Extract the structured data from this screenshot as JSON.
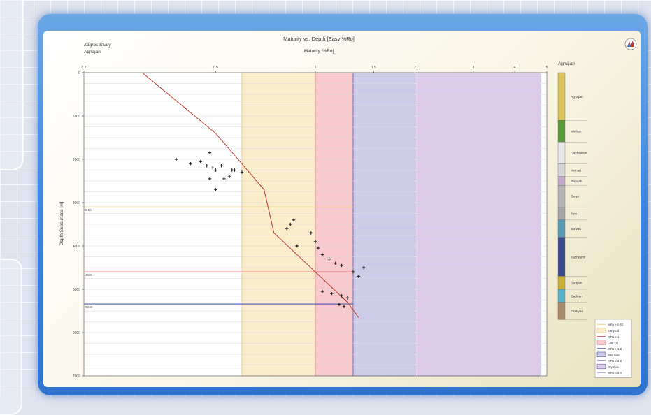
{
  "chart_data": {
    "type": "scatter",
    "title": "Maturity vs. Depth [Easy %Ro]",
    "header_left": [
      "Zagros Study",
      "Aghajari"
    ],
    "xlabel": "Maturity [%Ro]",
    "ylabel": "Depth Subsurface [m]",
    "x_scale": "log",
    "xlim": [
      0.2,
      5
    ],
    "ylim": [
      0,
      7000
    ],
    "x_ticks": [
      {
        "value": 0.2,
        "label": "0.2"
      },
      {
        "value": 0.5,
        "label": "0.5"
      },
      {
        "value": 1,
        "label": "1"
      },
      {
        "value": 1.5,
        "label": "1.5"
      },
      {
        "value": 2,
        "label": "2"
      },
      {
        "value": 3,
        "label": "3"
      },
      {
        "value": 4,
        "label": "4"
      },
      {
        "value": 5,
        "label": "5"
      }
    ],
    "y_ticks": [
      {
        "value": 0,
        "label": "0"
      },
      {
        "value": 1000,
        "label": "1000"
      },
      {
        "value": 2000,
        "label": "2000"
      },
      {
        "value": 3000,
        "label": "3000"
      },
      {
        "value": 4000,
        "label": "4000"
      },
      {
        "value": 5000,
        "label": "5000"
      },
      {
        "value": 6000,
        "label": "6000"
      },
      {
        "value": 7000,
        "label": "7000"
      }
    ],
    "maturity_zones": [
      {
        "name": "Early Oil",
        "from": 0.6,
        "to": 1.0,
        "color": "#fbeccb",
        "edge": "#e6cd7a"
      },
      {
        "name": "Late Oil",
        "from": 1.0,
        "to": 1.3,
        "color": "#f7c9cc",
        "edge": "#d88088"
      },
      {
        "name": "Wet Gas",
        "from": 1.3,
        "to": 2.0,
        "color": "#cccbe8",
        "edge": "#5a5aa8"
      },
      {
        "name": "Dry Gas",
        "from": 2.0,
        "to": 4.8,
        "color": "#dcccea",
        "edge": "#6a5aa8"
      }
    ],
    "depth_lines": [
      {
        "label": "0.55",
        "depth": 3100,
        "color": "#e8d58a"
      },
      {
        "label": "4600",
        "depth": 4600,
        "color": "#d46a72"
      },
      {
        "label": "5340",
        "depth": 5340,
        "color": "#4a5fb0"
      }
    ],
    "series": [
      {
        "name": "Easy %Ro",
        "kind": "line",
        "color": "#c0392b",
        "points": [
          [
            0.3,
            0
          ],
          [
            0.5,
            1400
          ],
          [
            0.7,
            2700
          ],
          [
            0.75,
            3700
          ],
          [
            1.0,
            4600
          ],
          [
            1.25,
            5300
          ],
          [
            1.35,
            5650
          ]
        ]
      },
      {
        "kind": "scatter",
        "color": "#222222",
        "points": [
          [
            0.38,
            2000
          ],
          [
            0.42,
            2100
          ],
          [
            0.45,
            2050
          ],
          [
            0.47,
            2150
          ],
          [
            0.48,
            1850
          ],
          [
            0.49,
            2200
          ],
          [
            0.5,
            2250
          ],
          [
            0.52,
            2150
          ],
          [
            0.53,
            2450
          ],
          [
            0.55,
            2400
          ],
          [
            0.56,
            2250
          ],
          [
            0.57,
            2250
          ],
          [
            0.6,
            2300
          ],
          [
            0.5,
            2700
          ],
          [
            0.48,
            2450
          ],
          [
            0.82,
            3600
          ],
          [
            0.84,
            3500
          ],
          [
            0.86,
            3400
          ],
          [
            0.88,
            4000
          ],
          [
            0.97,
            3700
          ],
          [
            1.0,
            3900
          ],
          [
            1.02,
            4050
          ],
          [
            1.05,
            4200
          ],
          [
            1.1,
            4300
          ],
          [
            1.15,
            4400
          ],
          [
            1.2,
            4450
          ],
          [
            1.3,
            4600
          ],
          [
            1.35,
            4700
          ],
          [
            1.05,
            5050
          ],
          [
            1.12,
            5100
          ],
          [
            1.2,
            5150
          ],
          [
            1.25,
            5200
          ],
          [
            1.18,
            5350
          ],
          [
            1.22,
            5400
          ],
          [
            1.4,
            4500
          ]
        ]
      }
    ],
    "column_title": "Aghajari",
    "lithology_column": [
      {
        "name": "Aghajari",
        "from": 0,
        "to": 1100,
        "color": "#d9c35a"
      },
      {
        "name": "Mishan",
        "from": 1100,
        "to": 1600,
        "color": "#5a9a3a"
      },
      {
        "name": "Gachsaran",
        "from": 1600,
        "to": 2100,
        "color": "#e8e8e8"
      },
      {
        "name": "Asmari",
        "from": 2100,
        "to": 2400,
        "color": "#d5d5d5"
      },
      {
        "name": "Pabdeh",
        "from": 2400,
        "to": 2600,
        "color": "#c4a8c8"
      },
      {
        "name": "Gurpi",
        "from": 2600,
        "to": 3100,
        "color": "#b5b5b5"
      },
      {
        "name": "Ilam",
        "from": 3100,
        "to": 3400,
        "color": "#a7a7a7"
      },
      {
        "name": "Sarvak",
        "from": 3400,
        "to": 3800,
        "color": "#5a9ab0"
      },
      {
        "name": "Kazhdumi",
        "from": 3800,
        "to": 4700,
        "color": "#3a4a8a"
      },
      {
        "name": "Dariyan",
        "from": 4700,
        "to": 5000,
        "color": "#c8b03a"
      },
      {
        "name": "Gadvan",
        "from": 5000,
        "to": 5300,
        "color": "#5ab0c8"
      },
      {
        "name": "Fahliyan",
        "from": 5300,
        "to": 5700,
        "color": "#a88a6a"
      }
    ],
    "legend": [
      {
        "label": "%Ro ≥ 0.55",
        "kind": "line",
        "color": "#e8d58a"
      },
      {
        "label": "Early Oil",
        "kind": "box",
        "color": "#fbeccb",
        "edge": "#e6cd7a"
      },
      {
        "label": "%Ro ≥ 1",
        "kind": "line",
        "color": "#d46a72"
      },
      {
        "label": "Late Oil",
        "kind": "box",
        "color": "#f7c9cc",
        "edge": "#d88088"
      },
      {
        "label": "%Ro ≥ 1.3",
        "kind": "line",
        "color": "#4a5fb0"
      },
      {
        "label": "Wet Gas",
        "kind": "box",
        "color": "#cccbe8",
        "edge": "#5a5aa8"
      },
      {
        "label": "%Ro ≥ 2.0",
        "kind": "line",
        "color": "#6a5aa8"
      },
      {
        "label": "Dry Gas",
        "kind": "box",
        "color": "#dcccea",
        "edge": "#6a5aa8"
      },
      {
        "label": "%Ro ≥ 4.0",
        "kind": "line",
        "color": "#8a7ab8"
      }
    ],
    "legend_placement": "bottom-right",
    "grid": true
  },
  "toolbar": {
    "icon_name": "chart-logo-icon"
  }
}
